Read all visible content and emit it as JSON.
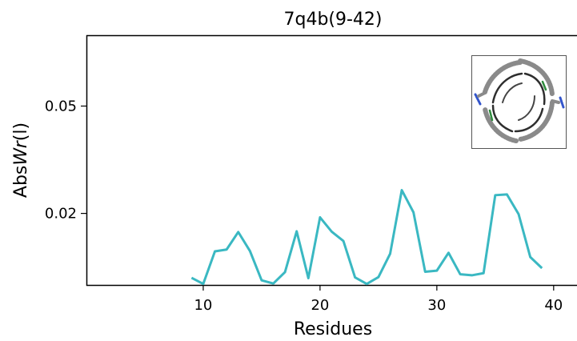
{
  "chart_data": {
    "type": "line",
    "title": "7q4b(9-42)",
    "xlabel": "Residues",
    "ylabel_prefix": "Abs",
    "ylabel_italic": "Wr",
    "ylabel_suffix": "(l)",
    "xlim": [
      0,
      42
    ],
    "ylim": [
      0.0,
      0.0698
    ],
    "xticks": [
      10,
      20,
      30,
      40
    ],
    "yticks": [
      0.02,
      0.05
    ],
    "ytick_labels": [
      "0.02",
      "0.05"
    ],
    "grid": false,
    "inset": "protein structure thumbnail",
    "series": [
      {
        "color": "#3ab8c2",
        "x": [
          9,
          10,
          11,
          12,
          13,
          14,
          15,
          16,
          17,
          18,
          19,
          20,
          21,
          22,
          23,
          24,
          25,
          26,
          27,
          28,
          29,
          30,
          31,
          32,
          33,
          34,
          35,
          36,
          37,
          38,
          39
        ],
        "y": [
          0.002,
          0.0003,
          0.0094,
          0.0099,
          0.0148,
          0.0095,
          0.0013,
          0.0004,
          0.0036,
          0.015,
          0.0019,
          0.0189,
          0.0149,
          0.0123,
          0.0021,
          0.0003,
          0.0022,
          0.0087,
          0.0265,
          0.0203,
          0.0037,
          0.004,
          0.009,
          0.003,
          0.0027,
          0.0033,
          0.0251,
          0.0253,
          0.0198,
          0.0078,
          0.0047
        ]
      }
    ]
  }
}
